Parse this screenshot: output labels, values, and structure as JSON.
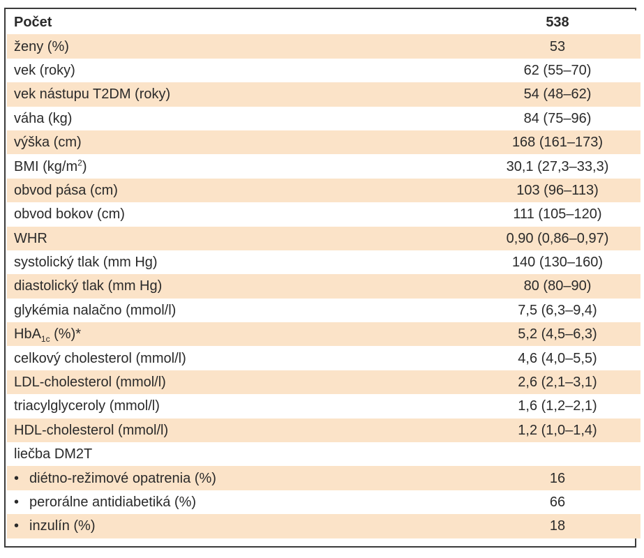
{
  "table": {
    "header": {
      "label": "Počet",
      "value": "538"
    },
    "rows": [
      {
        "label": "ženy (%)",
        "value": "53"
      },
      {
        "label": "vek (roky)",
        "value": "62 (55–70)"
      },
      {
        "label": "vek nástupu T2DM (roky)",
        "value": "54 (48–62)"
      },
      {
        "label": "váha (kg)",
        "value": "84 (75–96)"
      },
      {
        "label": "výška (cm)",
        "value": "168 (161–173)"
      },
      {
        "label_pre": "BMI (kg/m",
        "label_sup": "2",
        "label_post": ")",
        "value": "30,1 (27,3–33,3)"
      },
      {
        "label": "obvod pása (cm)",
        "value": "103 (96–113)"
      },
      {
        "label": "obvod bokov (cm)",
        "value": "111 (105–120)"
      },
      {
        "label": "WHR",
        "value": "0,90 (0,86–0,97)"
      },
      {
        "label": "systolický tlak (mm Hg)",
        "value": "140 (130–160)"
      },
      {
        "label": "diastolický tlak (mm Hg)",
        "value": "80 (80–90)"
      },
      {
        "label": "glykémia nalačno (mmol/l)",
        "value": "7,5 (6,3–9,4)"
      },
      {
        "label_pre": "HbA",
        "label_sub": "1c",
        "label_post": " (%)*",
        "value": "5,2 (4,5–6,3)"
      },
      {
        "label": "celkový cholesterol (mmol/l)",
        "value": "4,6 (4,0–5,5)"
      },
      {
        "label": "LDL-cholesterol (mmol/l)",
        "value": "2,6 (2,1–3,1)"
      },
      {
        "label": "triacylglyceroly (mmol/l)",
        "value": "1,6 (1,2–2,1)"
      },
      {
        "label": "HDL-cholesterol (mmol/l)",
        "value": "1,2 (1,0–1,4)"
      },
      {
        "label": "liečba DM2T",
        "value": ""
      },
      {
        "bullet": "•",
        "label": "diétno-režimové opatrenia (%)",
        "value": "16"
      },
      {
        "bullet": "•",
        "label": "perorálne antidiabetiká (%)",
        "value": "66"
      },
      {
        "bullet": "•",
        "label": "inzulín (%)",
        "value": "18"
      }
    ]
  },
  "colors": {
    "row_shade": "#fbe3c8",
    "border": "#3a3a3a",
    "text": "#2a2a2a"
  }
}
